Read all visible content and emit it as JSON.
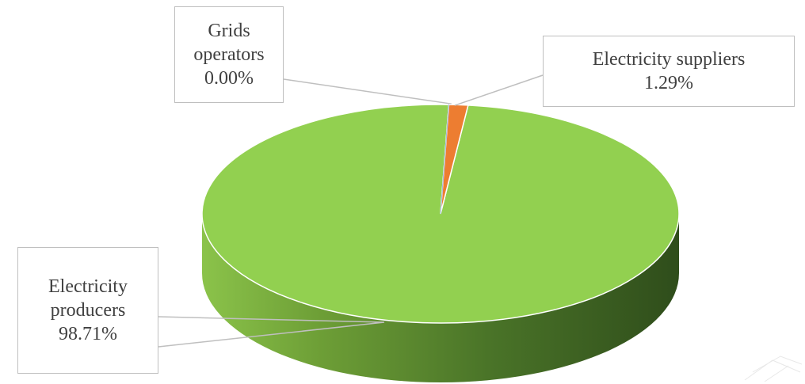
{
  "colors": {
    "producers_top": "#92d050",
    "producers_side_dark": "#375623",
    "producers_side_light": "#7aab3a",
    "suppliers": "#ed7d31",
    "grids": "#4472c4",
    "leader_line": "#bfbfbf",
    "label_text": "#404040"
  },
  "chart_data": {
    "type": "pie",
    "style": "3d",
    "title": "",
    "slices": [
      {
        "label": "Electricity producers",
        "value": 98.71,
        "value_label": "98.71%"
      },
      {
        "label": "Grids operators",
        "value": 0.0,
        "value_label": "0.00%"
      },
      {
        "label": "Electricity suppliers",
        "value": 1.29,
        "value_label": "1.29%"
      }
    ],
    "legend": "none",
    "data_labels": "callouts"
  },
  "labels": {
    "grids": {
      "line1": "Grids",
      "line2": "operators",
      "value": "0.00%"
    },
    "suppliers": {
      "line1": "Electricity suppliers",
      "value": "1.29%"
    },
    "producers": {
      "line1": "Electricity",
      "line2": "producers",
      "value": "98.71%"
    }
  }
}
